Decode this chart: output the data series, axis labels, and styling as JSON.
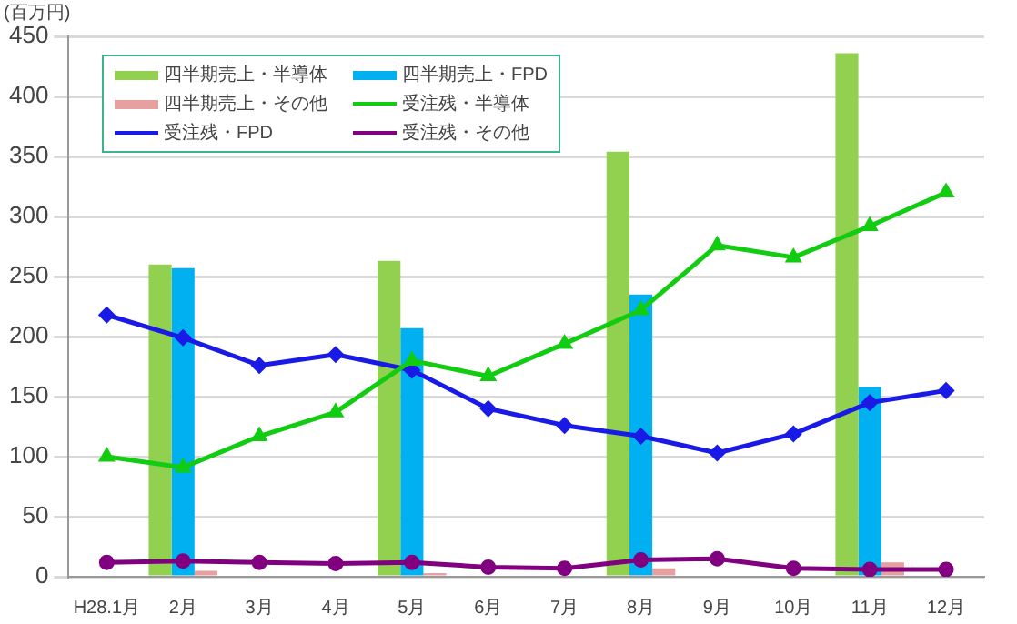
{
  "chart_data": {
    "type": "bar",
    "ylabel": "(百万円)",
    "categories": [
      "H28.1月",
      "2月",
      "3月",
      "4月",
      "5月",
      "6月",
      "7月",
      "8月",
      "9月",
      "10月",
      "11月",
      "12月"
    ],
    "ylim": [
      0,
      450
    ],
    "yticks": [
      0,
      50,
      100,
      150,
      200,
      250,
      300,
      350,
      400,
      450
    ],
    "grid": "y",
    "legend": "top left",
    "series": [
      {
        "name": "四半期売上・半導体",
        "color": "#92d050",
        "values": [
          null,
          260,
          null,
          null,
          263,
          null,
          null,
          354,
          null,
          null,
          436,
          null
        ]
      },
      {
        "name": "四半期売上・FPD",
        "color": "#00b0f0",
        "values": [
          null,
          257,
          null,
          null,
          207,
          null,
          null,
          235,
          null,
          null,
          158,
          null
        ]
      },
      {
        "name": "四半期売上・その他",
        "color": "#e6a0a0",
        "values": [
          null,
          5,
          null,
          null,
          3,
          null,
          null,
          7,
          null,
          null,
          12,
          null
        ]
      },
      {
        "name": "受注残・半導体",
        "type": "line",
        "marker": "triangle",
        "color": "#11cc11",
        "values": [
          100,
          91,
          117,
          137,
          180,
          167,
          194,
          222,
          276,
          266,
          292,
          320
        ]
      },
      {
        "name": "受注残・FPD",
        "type": "line",
        "marker": "diamond",
        "color": "#1a1ae6",
        "values": [
          218,
          199,
          176,
          185,
          172,
          140,
          126,
          117,
          103,
          119,
          145,
          155
        ]
      },
      {
        "name": "受注残・その他",
        "type": "line",
        "marker": "circle",
        "color": "#800080",
        "values": [
          12,
          13,
          12,
          11,
          12,
          8,
          7,
          14,
          15,
          7,
          6,
          6
        ]
      }
    ]
  }
}
